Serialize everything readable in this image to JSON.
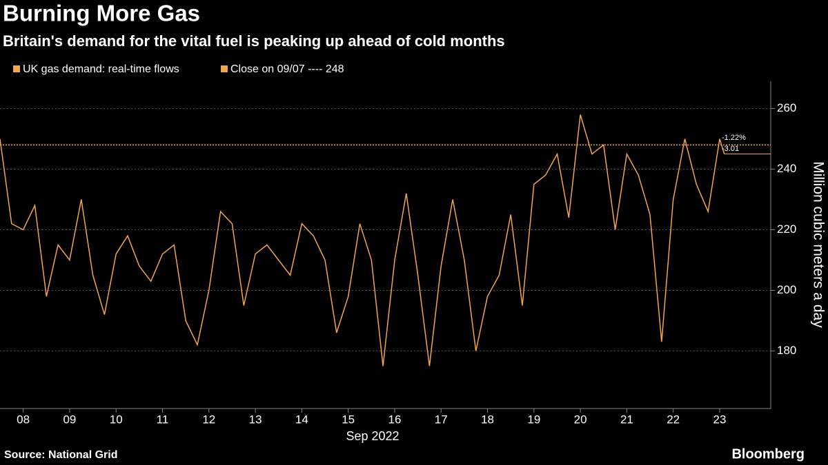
{
  "chart_data": {
    "type": "line",
    "title": "Burning More Gas",
    "subtitle": "Britain's demand for the vital fuel is peaking up ahead of cold months",
    "x_label": "Sep 2022",
    "y_label": "Million cubic meters a day",
    "source": "Source: National Grid",
    "brand": "Bloomberg",
    "series": [
      {
        "name": "UK gas demand: real-time flows",
        "color": "#f5a54a",
        "x": [
          7.5,
          7.75,
          8,
          8.25,
          8.5,
          8.75,
          9,
          9.25,
          9.5,
          9.75,
          10,
          10.25,
          10.5,
          10.75,
          11,
          11.25,
          11.5,
          11.75,
          12,
          12.25,
          12.5,
          12.75,
          13,
          13.25,
          13.5,
          13.75,
          14,
          14.25,
          14.5,
          14.75,
          15,
          15.25,
          15.5,
          15.75,
          16,
          16.25,
          16.5,
          16.75,
          17,
          17.25,
          17.5,
          17.75,
          18,
          18.25,
          18.5,
          18.75,
          19,
          19.25,
          19.5,
          19.75,
          20,
          20.25,
          20.5,
          20.75,
          21,
          21.25,
          21.5,
          21.75,
          22,
          22.25,
          22.5,
          22.75,
          23,
          23.1
        ],
        "values": [
          250,
          222,
          220,
          228,
          198,
          215,
          210,
          230,
          205,
          192,
          212,
          218,
          208,
          203,
          212,
          215,
          190,
          182,
          200,
          226,
          222,
          195,
          212,
          215,
          210,
          205,
          222,
          218,
          210,
          186,
          198,
          222,
          210,
          175,
          210,
          232,
          205,
          175,
          208,
          230,
          210,
          180,
          198,
          205,
          225,
          195,
          235,
          238,
          245,
          224,
          258,
          245,
          248,
          220,
          245,
          238,
          225,
          183,
          230,
          250,
          235,
          226,
          250,
          245
        ]
      }
    ],
    "reference_line": {
      "name": "Close on 09/07 ---- 248",
      "value": 248,
      "color": "#f5a54a"
    },
    "annotations": [
      "-1.22%",
      "-3.01"
    ],
    "xlim": [
      7.5,
      24.1
    ],
    "xticks": [
      {
        "value": 8,
        "label": "08"
      },
      {
        "value": 9,
        "label": "09"
      },
      10,
      11,
      12,
      13,
      14,
      15,
      16,
      17,
      18,
      19,
      20,
      21,
      22,
      23
    ],
    "ylim": [
      161,
      269
    ],
    "yticks": [
      180,
      200,
      220,
      240,
      260
    ],
    "grid": true
  }
}
